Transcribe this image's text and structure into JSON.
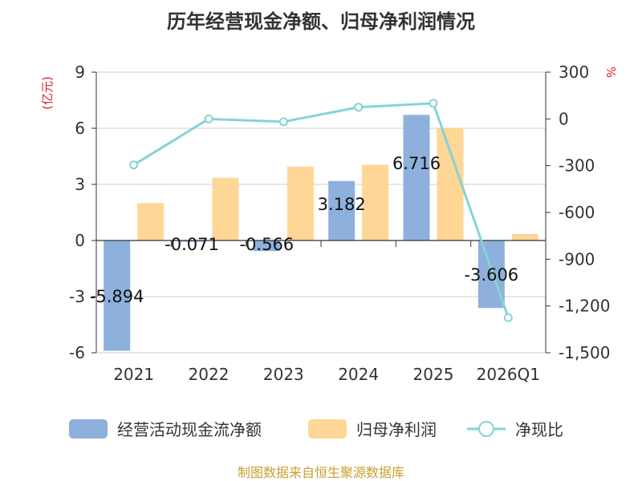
{
  "chart_data": {
    "type": "bar",
    "title": "历年经营现金净额、归母净利润情况",
    "categories": [
      "2021",
      "2022",
      "2023",
      "2024",
      "2025",
      "2026Q1"
    ],
    "series": [
      {
        "name": "经营活动现金流净额",
        "kind": "bar",
        "axis": "left",
        "color": "#8eb0dc",
        "values": [
          -5.894,
          -0.071,
          -0.566,
          3.182,
          6.716,
          -3.606
        ],
        "labels": [
          "-5.894",
          "-0.071",
          "-0.566",
          "3.182",
          "6.716",
          "-3.606"
        ]
      },
      {
        "name": "归母净利润",
        "kind": "bar",
        "axis": "left",
        "color": "#fed695",
        "values": [
          2.0,
          3.35,
          3.95,
          4.05,
          6.0,
          0.35
        ]
      },
      {
        "name": "净现比",
        "kind": "line",
        "axis": "right",
        "color": "#86d3d6",
        "values": [
          -295,
          0,
          -18,
          75,
          100,
          -1275
        ]
      }
    ],
    "y_left": {
      "label": "(亿元)",
      "range": [
        -6,
        9
      ],
      "ticks": [
        9,
        6,
        3,
        0,
        -3,
        -6
      ],
      "tick_labels": [
        "9",
        "6",
        "3",
        "0",
        "-3",
        "-6"
      ]
    },
    "y_right": {
      "label": "%",
      "range": [
        -1500,
        300
      ],
      "ticks": [
        300,
        0,
        -300,
        -600,
        -900,
        -1200,
        -1500
      ],
      "tick_labels": [
        "300",
        "0",
        "-300",
        "-600",
        "-900",
        "-1,200",
        "-1,500"
      ]
    },
    "grid": true,
    "legend_position": "bottom",
    "source": "制图数据来自恒生聚源数据库"
  }
}
